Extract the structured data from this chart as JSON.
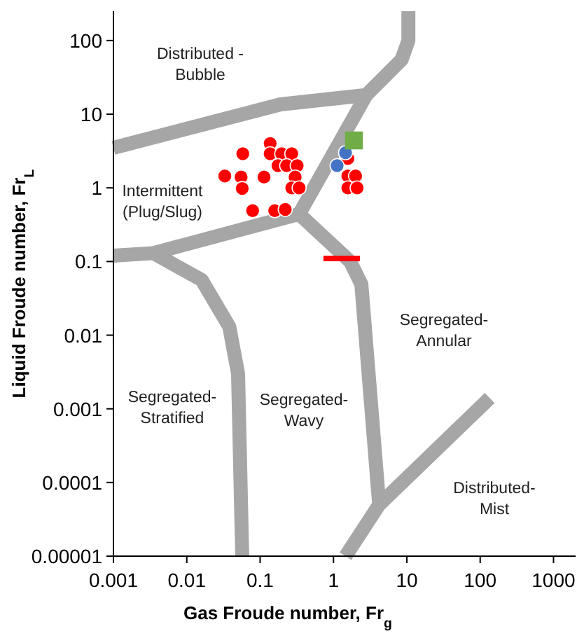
{
  "chart_data": {
    "type": "scatter",
    "xlabel": "Gas Froude number, Fr$_{g}$",
    "ylabel": "Liquid Froude number, Fr$_{L}$",
    "log": "xy",
    "grid": false,
    "xlim": [
      0.001,
      2000
    ],
    "ylim": [
      1e-05,
      250
    ],
    "xticks": [
      0.001,
      0.01,
      0.1,
      1,
      10,
      100,
      1000
    ],
    "yticks": [
      {
        "value": 1e-05,
        "label": "0.00001"
      },
      0.0001,
      0.001,
      0.01,
      0.1,
      1,
      10,
      100
    ],
    "annotations": [
      "Distributed -\nBubble",
      "Intermittent\n(Plug/Slug)",
      "Segregated-\nAnnular",
      "Segregated-\nStratified",
      "Segregated-\nWavy",
      "Distributed-\nMist"
    ],
    "series": [
      {
        "type": "line",
        "color": "#a6a6a6",
        "marker": "none",
        "x": [
          0.001,
          0.19,
          2.8,
          8.5,
          10.5,
          10.5
        ],
        "values": [
          3.5,
          13.6,
          18.2,
          55,
          100,
          250
        ]
      },
      {
        "type": "line",
        "color": "#a6a6a6",
        "marker": "none",
        "x": [
          2.8,
          0.34
        ],
        "values": [
          18.2,
          0.44
        ]
      },
      {
        "type": "line",
        "color": "#a6a6a6",
        "marker": "none",
        "x": [
          0.001,
          0.0035,
          0.34
        ],
        "values": [
          0.12,
          0.13,
          0.44
        ]
      },
      {
        "type": "line",
        "color": "#a6a6a6",
        "marker": "none",
        "x": [
          0.0035,
          0.016,
          0.038,
          0.05,
          0.057
        ],
        "values": [
          0.13,
          0.056,
          0.013,
          0.003,
          1e-05
        ]
      },
      {
        "type": "line",
        "color": "#a6a6a6",
        "marker": "none",
        "x": [
          0.34,
          1.69,
          2.4,
          4.2
        ],
        "values": [
          0.44,
          0.1,
          0.049,
          5e-05
        ]
      },
      {
        "type": "line",
        "color": "#a6a6a6",
        "marker": "none",
        "x": [
          1.46,
          4.2,
          135
        ],
        "values": [
          1e-05,
          5e-05,
          0.0014
        ]
      },
      {
        "type": "line",
        "color": "#ff0000",
        "marker": "none",
        "x": [
          0.73,
          2.3
        ],
        "values": [
          0.11,
          0.11
        ]
      },
      {
        "color": "#ff0000",
        "marker": "circle",
        "x": [
          0.033,
          0.058,
          0.055,
          0.057,
          0.113,
          0.079,
          0.158
        ],
        "values": [
          1.45,
          2.9,
          1.4,
          0.98,
          1.4,
          0.49,
          0.49
        ]
      },
      {
        "color": "#ff0000",
        "marker": "circle",
        "x": [
          0.137,
          0.137,
          0.197,
          0.27,
          0.175,
          0.23,
          0.32,
          0.3,
          0.27,
          0.34,
          0.22
        ],
        "values": [
          4,
          2.9,
          2.9,
          2.9,
          2,
          2,
          2,
          1.4,
          1,
          1,
          0.51
        ]
      },
      {
        "color": "#ff0000",
        "marker": "circle",
        "x": [
          1.57,
          1.57,
          2,
          1.57,
          2.1
        ],
        "values": [
          2.5,
          1.45,
          1.45,
          1,
          1
        ]
      },
      {
        "color": "#4472c4",
        "marker": "circle",
        "x": [
          1.46,
          1.12
        ],
        "values": [
          3,
          2
        ]
      },
      {
        "color": "#70ad47",
        "marker": "square",
        "x": [
          1.9
        ],
        "values": [
          4.4
        ]
      }
    ]
  }
}
